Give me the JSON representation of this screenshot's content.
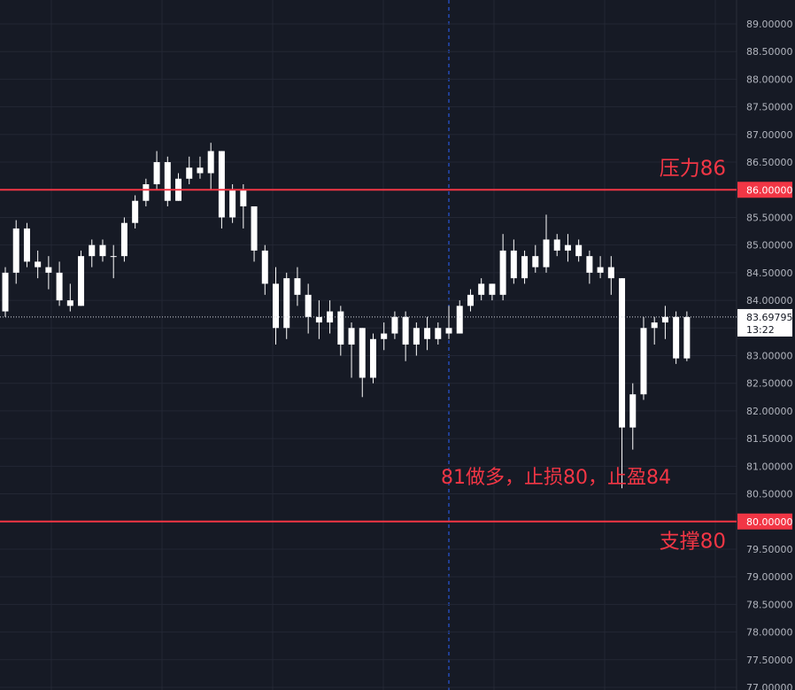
{
  "chart_data": {
    "type": "candlestick",
    "color": "#ffffff",
    "line_color": "#f23645",
    "open": [
      83.8,
      84.5,
      85.3,
      84.7,
      84.6,
      84.5,
      84.0,
      83.9,
      84.8,
      85.0,
      84.8,
      84.8,
      85.4,
      85.8,
      86.1,
      86.5,
      85.8,
      86.2,
      86.4,
      86.3,
      86.7,
      85.5,
      86.0,
      85.7,
      84.9,
      84.3,
      83.5,
      84.4,
      84.1,
      83.7,
      83.6,
      83.8,
      83.2,
      83.5,
      82.6,
      83.3,
      83.4,
      83.7,
      83.2,
      83.5,
      83.3,
      83.5,
      83.4,
      83.9,
      84.1,
      84.3,
      84.1,
      84.9,
      84.4,
      84.8,
      84.6,
      85.1,
      84.9,
      85.0,
      84.8,
      84.5,
      84.6,
      84.4,
      81.7,
      82.3,
      83.5,
      83.6,
      83.7,
      82.95
    ],
    "high": [
      84.6,
      85.45,
      85.4,
      84.9,
      84.8,
      84.7,
      84.3,
      84.9,
      85.1,
      85.1,
      85.0,
      85.5,
      85.9,
      86.2,
      86.7,
      86.6,
      86.3,
      86.6,
      86.6,
      86.85,
      86.7,
      86.1,
      86.1,
      85.7,
      85.0,
      84.6,
      84.5,
      84.6,
      84.3,
      84.0,
      84.0,
      83.9,
      83.6,
      83.5,
      83.4,
      83.6,
      83.8,
      83.8,
      83.6,
      83.7,
      83.6,
      83.9,
      84.0,
      84.2,
      84.4,
      84.3,
      85.2,
      85.1,
      84.9,
      85.0,
      85.55,
      85.2,
      85.2,
      85.1,
      84.9,
      84.8,
      84.8,
      84.4,
      82.5,
      83.7,
      83.7,
      83.9,
      83.8,
      83.8
    ],
    "low": [
      83.7,
      84.3,
      84.6,
      84.4,
      84.2,
      83.9,
      83.8,
      83.9,
      84.6,
      84.7,
      84.4,
      84.7,
      85.3,
      85.7,
      86.0,
      85.7,
      85.8,
      86.1,
      86.2,
      86.0,
      85.3,
      85.4,
      85.3,
      84.7,
      84.1,
      83.2,
      83.3,
      83.9,
      83.4,
      83.3,
      83.4,
      83.0,
      82.6,
      82.25,
      82.5,
      83.1,
      83.3,
      82.9,
      83.0,
      83.1,
      83.2,
      83.3,
      83.4,
      83.8,
      84.0,
      84.0,
      84.0,
      84.3,
      84.3,
      84.5,
      84.5,
      84.8,
      84.7,
      84.7,
      84.3,
      84.4,
      84.1,
      80.6,
      81.3,
      82.2,
      83.2,
      83.3,
      82.85,
      82.9
    ],
    "close": [
      84.5,
      85.3,
      84.7,
      84.6,
      84.5,
      84.0,
      83.9,
      84.8,
      85.0,
      84.8,
      84.8,
      85.4,
      85.8,
      86.1,
      86.5,
      85.8,
      86.2,
      86.4,
      86.3,
      86.7,
      85.5,
      86.0,
      85.7,
      84.9,
      84.3,
      83.5,
      84.4,
      84.1,
      83.7,
      83.6,
      83.8,
      83.2,
      83.5,
      82.6,
      83.3,
      83.4,
      83.7,
      83.2,
      83.5,
      83.3,
      83.5,
      83.4,
      83.9,
      84.1,
      84.3,
      84.1,
      84.9,
      84.4,
      84.8,
      84.6,
      85.1,
      84.9,
      85.0,
      84.8,
      84.5,
      84.6,
      84.4,
      81.7,
      82.3,
      83.5,
      83.6,
      83.7,
      82.95,
      83.69795
    ],
    "ylim": [
      77,
      89
    ],
    "yticks": [
      {
        "value": 77,
        "label": "77.00000"
      },
      {
        "value": 77.5,
        "label": "77.50000"
      },
      {
        "value": 78,
        "label": "78.00000"
      },
      {
        "value": 78.5,
        "label": "78.50000"
      },
      {
        "value": 79,
        "label": "79.00000"
      },
      {
        "value": 79.5,
        "label": "79.50000"
      },
      {
        "value": 80,
        "label": "80.00000"
      },
      {
        "value": 80.5,
        "label": "80.50000"
      },
      {
        "value": 81,
        "label": "81.00000"
      },
      {
        "value": 81.5,
        "label": "81.50000"
      },
      {
        "value": 82,
        "label": "82.00000"
      },
      {
        "value": 82.5,
        "label": "82.50000"
      },
      {
        "value": 83,
        "label": "83.00000"
      },
      {
        "value": 83.5,
        "label": "83.50000"
      },
      {
        "value": 84,
        "label": "84.00000"
      },
      {
        "value": 84.5,
        "label": "84.50000"
      },
      {
        "value": 85,
        "label": "85.00000"
      },
      {
        "value": 85.5,
        "label": "85.50000"
      },
      {
        "value": 86,
        "label": "86.00000"
      },
      {
        "value": 86.5,
        "label": "86.50000"
      },
      {
        "value": 87,
        "label": "87.00000"
      },
      {
        "value": 87.5,
        "label": "87.50000"
      },
      {
        "value": 88,
        "label": "88.00000"
      },
      {
        "value": 88.5,
        "label": "88.50000"
      },
      {
        "value": 89,
        "label": "89.00000"
      }
    ],
    "hlines": [
      {
        "value": 86,
        "label": "86.00000",
        "text": "压力86"
      },
      {
        "value": 80,
        "label": "80.00000",
        "text": "支撑80"
      }
    ],
    "current_price": 83.69795,
    "countdown": "13:22",
    "annotation": "81做多，止损80，止盈84"
  }
}
